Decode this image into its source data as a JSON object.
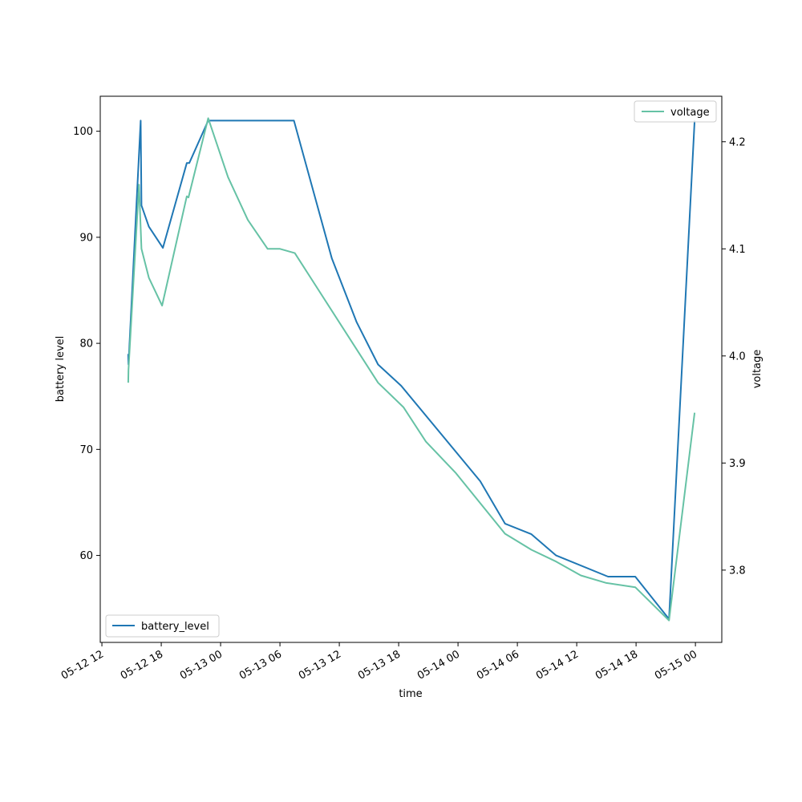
{
  "chart_data": {
    "type": "line",
    "title": "",
    "xlabel": "time",
    "ylabel_left": "battery level",
    "ylabel_right": "voltage",
    "x_ticks": [
      {
        "t": "2024-05-12T12:00",
        "label": "05-12 12"
      },
      {
        "t": "2024-05-12T18:00",
        "label": "05-12 18"
      },
      {
        "t": "2024-05-13T00:00",
        "label": "05-13 00"
      },
      {
        "t": "2024-05-13T06:00",
        "label": "05-13 06"
      },
      {
        "t": "2024-05-13T12:00",
        "label": "05-13 12"
      },
      {
        "t": "2024-05-13T18:00",
        "label": "05-13 18"
      },
      {
        "t": "2024-05-14T00:00",
        "label": "05-14 00"
      },
      {
        "t": "2024-05-14T06:00",
        "label": "05-14 06"
      },
      {
        "t": "2024-05-14T12:00",
        "label": "05-14 12"
      },
      {
        "t": "2024-05-14T18:00",
        "label": "05-14 18"
      },
      {
        "t": "2024-05-15T00:00",
        "label": "05-15 00"
      }
    ],
    "xlim": [
      "2024-05-12T11:50",
      "2024-05-15T02:40"
    ],
    "ylim_left": [
      51.8,
      103.3
    ],
    "ylim_right": [
      3.7325,
      4.2425
    ],
    "y_ticks_left": [
      60,
      70,
      80,
      90,
      100
    ],
    "y_ticks_right": [
      3.8,
      3.9,
      4.0,
      4.1,
      4.2
    ],
    "grid": false,
    "series": [
      {
        "name": "battery_level",
        "axis": "left",
        "color": "#1f77b4",
        "legend_position": "lower left",
        "points": [
          {
            "x": "2024-05-12T14:40",
            "y": 79
          },
          {
            "x": "2024-05-12T14:41",
            "y": 78
          },
          {
            "x": "2024-05-12T15:55",
            "y": 101
          },
          {
            "x": "2024-05-12T16:00",
            "y": 93
          },
          {
            "x": "2024-05-12T16:45",
            "y": 91
          },
          {
            "x": "2024-05-12T18:10",
            "y": 89
          },
          {
            "x": "2024-05-12T20:35",
            "y": 97
          },
          {
            "x": "2024-05-12T20:50",
            "y": 97
          },
          {
            "x": "2024-05-12T22:45",
            "y": 101
          },
          {
            "x": "2024-05-13T07:25",
            "y": 101
          },
          {
            "x": "2024-05-13T11:15",
            "y": 88
          },
          {
            "x": "2024-05-13T13:45",
            "y": 82
          },
          {
            "x": "2024-05-13T15:55",
            "y": 78
          },
          {
            "x": "2024-05-13T18:15",
            "y": 76
          },
          {
            "x": "2024-05-14T02:15",
            "y": 67
          },
          {
            "x": "2024-05-14T04:45",
            "y": 63
          },
          {
            "x": "2024-05-14T07:25",
            "y": 62
          },
          {
            "x": "2024-05-14T09:55",
            "y": 60
          },
          {
            "x": "2024-05-14T15:10",
            "y": 58
          },
          {
            "x": "2024-05-14T17:55",
            "y": 58
          },
          {
            "x": "2024-05-14T21:20",
            "y": 54
          },
          {
            "x": "2024-05-14T23:55",
            "y": 101
          }
        ]
      },
      {
        "name": "voltage",
        "axis": "right",
        "color": "#66c2a5",
        "legend_position": "upper right",
        "points": [
          {
            "x": "2024-05-12T14:40",
            "y": 3.975
          },
          {
            "x": "2024-05-12T14:41",
            "y": 3.987
          },
          {
            "x": "2024-05-12T15:45",
            "y": 4.16
          },
          {
            "x": "2024-05-12T16:00",
            "y": 4.1
          },
          {
            "x": "2024-05-12T16:45",
            "y": 4.073
          },
          {
            "x": "2024-05-12T18:05",
            "y": 4.047
          },
          {
            "x": "2024-05-12T20:35",
            "y": 4.149
          },
          {
            "x": "2024-05-12T20:45",
            "y": 4.148
          },
          {
            "x": "2024-05-12T22:45",
            "y": 4.222
          },
          {
            "x": "2024-05-13T00:45",
            "y": 4.167
          },
          {
            "x": "2024-05-13T02:45",
            "y": 4.127
          },
          {
            "x": "2024-05-13T04:45",
            "y": 4.1
          },
          {
            "x": "2024-05-13T06:00",
            "y": 4.1
          },
          {
            "x": "2024-05-13T07:30",
            "y": 4.096
          },
          {
            "x": "2024-05-13T15:55",
            "y": 3.975
          },
          {
            "x": "2024-05-13T18:30",
            "y": 3.952
          },
          {
            "x": "2024-05-13T20:45",
            "y": 3.92
          },
          {
            "x": "2024-05-13T23:45",
            "y": 3.891
          },
          {
            "x": "2024-05-14T04:45",
            "y": 3.834
          },
          {
            "x": "2024-05-14T07:25",
            "y": 3.819
          },
          {
            "x": "2024-05-14T09:55",
            "y": 3.808
          },
          {
            "x": "2024-05-14T12:25",
            "y": 3.795
          },
          {
            "x": "2024-05-14T15:00",
            "y": 3.788
          },
          {
            "x": "2024-05-14T17:55",
            "y": 3.784
          },
          {
            "x": "2024-05-14T21:20",
            "y": 3.753
          },
          {
            "x": "2024-05-14T23:55",
            "y": 3.947
          }
        ]
      }
    ]
  }
}
